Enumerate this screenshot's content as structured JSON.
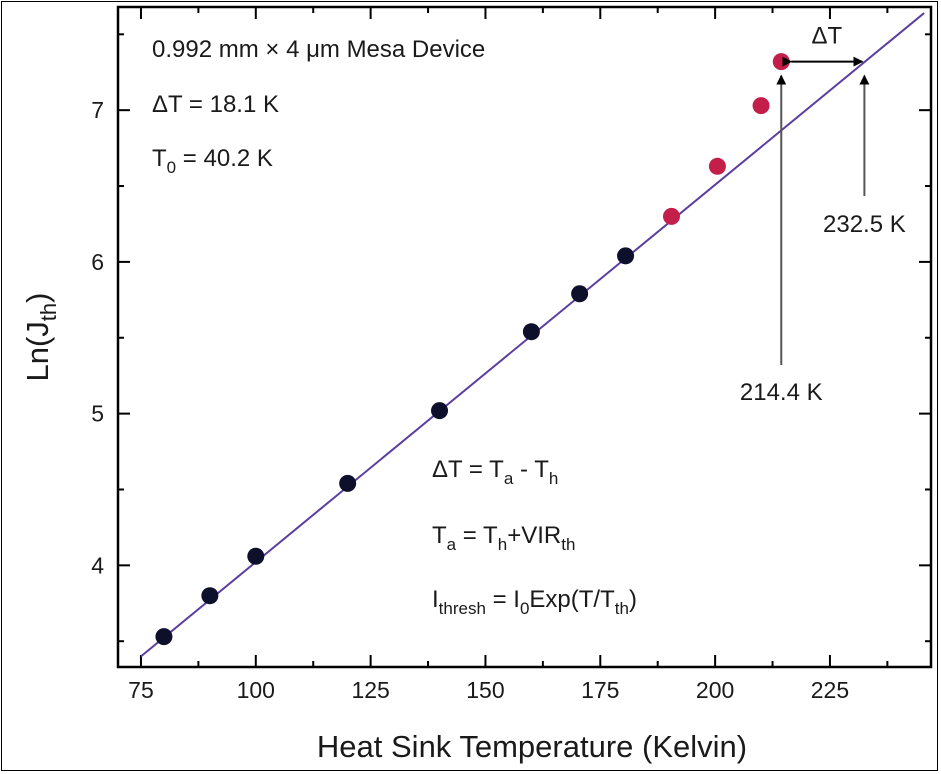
{
  "chart_data": {
    "type": "scatter",
    "title": "",
    "xlabel": "Heat Sink Temperature (Kelvin)",
    "ylabel_base": "Ln(J",
    "ylabel_sub": "th",
    "ylabel_end": ")",
    "xlim": [
      70,
      247
    ],
    "ylim": [
      3.33,
      7.68
    ],
    "xticks": [
      75,
      100,
      125,
      150,
      175,
      200,
      225
    ],
    "yticks": [
      4,
      5,
      6,
      7
    ],
    "grid": false,
    "series": [
      {
        "color": "#0d0f2b",
        "points": [
          [
            80,
            3.53
          ],
          [
            90,
            3.8
          ],
          [
            100,
            4.06
          ],
          [
            120,
            4.54
          ],
          [
            140,
            5.02
          ],
          [
            160,
            5.54
          ],
          [
            170.5,
            5.79
          ],
          [
            180.5,
            6.04
          ]
        ]
      },
      {
        "color": "#c41e4a",
        "points": [
          [
            190.5,
            6.3
          ],
          [
            200.5,
            6.63
          ],
          [
            210,
            7.03
          ],
          [
            214.4,
            7.32
          ]
        ]
      }
    ],
    "fit_line": {
      "color": "#5a3fa0",
      "points": [
        [
          75,
          3.4
        ],
        [
          245.5,
          7.64
        ]
      ]
    },
    "annotations": {
      "device": "0.992 mm × 4 μm Mesa Device",
      "dt_line": "ΔT = 18.1 K",
      "t0_base": "T",
      "t0_sub": "0",
      "t0_rest": " = 40.2 K",
      "dt_arrow_label": "ΔT",
      "t_high_label": "232.5 K",
      "t_low_label": "214.4 K",
      "eq1": {
        "a": "ΔT = T",
        "a_sub": "a",
        "b": " - T",
        "b_sub": "h"
      },
      "eq2": {
        "a": "T",
        "a_sub": "a",
        "b": " = T",
        "b_sub": "h",
        "c": "+VIR",
        "c_sub": "th"
      },
      "eq3": {
        "a": "I",
        "a_sub": "thresh",
        "b": " = I",
        "b_sub": "0",
        "c": "Exp(T/T",
        "c_sub": "th",
        "d": ")"
      }
    }
  }
}
